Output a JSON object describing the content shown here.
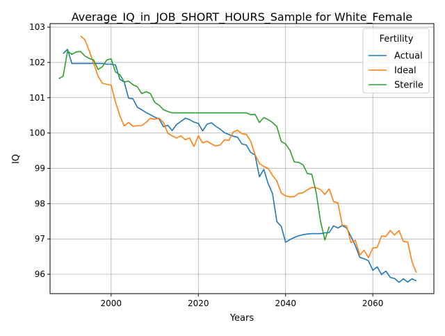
{
  "chart_data": {
    "type": "line",
    "title": "Average_IQ_in_JOB_SHORT_HOURS_Sample for White_Female",
    "xlabel": "Years",
    "ylabel": "IQ",
    "xlim": [
      1986,
      2074
    ],
    "ylim": [
      95.45,
      103.1
    ],
    "xticks": [
      2000,
      2020,
      2040,
      2060
    ],
    "yticks": [
      96,
      97,
      98,
      99,
      100,
      101,
      102,
      103
    ],
    "grid": true,
    "legend": {
      "title": "Fertility",
      "placement": "top-right"
    },
    "series": [
      {
        "name": "Actual",
        "color": "#1f77b4",
        "x": [
          1989,
          1990,
          1991,
          1992,
          1993,
          1994,
          1995,
          1996,
          1997,
          1998,
          1999,
          2000,
          2001,
          2002,
          2003,
          2004,
          2005,
          2006,
          2007,
          2008,
          2009,
          2010,
          2011,
          2012,
          2013,
          2014,
          2015,
          2016,
          2017,
          2018,
          2019,
          2020,
          2021,
          2022,
          2023,
          2024,
          2025,
          2026,
          2027,
          2028,
          2029,
          2030,
          2031,
          2032,
          2033,
          2034,
          2035,
          2036,
          2037,
          2038,
          2039,
          2040,
          2041,
          2042,
          2043,
          2044,
          2045,
          2046,
          2047,
          2048,
          2049,
          2050,
          2051,
          2052,
          2053,
          2054,
          2055,
          2056,
          2057,
          2058,
          2059,
          2060,
          2061,
          2062,
          2063,
          2064,
          2065,
          2066,
          2067,
          2068,
          2069,
          2070
        ],
        "y": [
          102.25,
          102.37,
          101.97,
          101.97,
          101.97,
          101.97,
          101.97,
          101.97,
          101.97,
          101.97,
          101.95,
          101.95,
          101.93,
          101.52,
          101.45,
          100.99,
          100.97,
          100.73,
          100.66,
          100.58,
          100.52,
          100.45,
          100.4,
          100.18,
          100.22,
          100.07,
          100.24,
          100.33,
          100.42,
          100.38,
          100.31,
          100.27,
          100.06,
          100.25,
          100.29,
          100.19,
          100.11,
          100.01,
          99.96,
          99.91,
          99.88,
          99.69,
          99.66,
          99.45,
          99.38,
          98.76,
          98.97,
          98.57,
          98.29,
          97.49,
          97.36,
          96.91,
          96.98,
          97.04,
          97.09,
          97.12,
          97.14,
          97.15,
          97.15,
          97.15,
          97.17,
          97.18,
          97.37,
          97.31,
          97.38,
          97.31,
          97.07,
          96.81,
          96.48,
          96.44,
          96.38,
          96.11,
          96.21,
          95.99,
          96.09,
          95.91,
          95.88,
          95.77,
          95.87,
          95.78,
          95.87,
          95.81
        ]
      },
      {
        "name": "Ideal",
        "color": "#ff7f0e",
        "x": [
          1993,
          1994,
          1995,
          1996,
          1997,
          1998,
          1999,
          2000,
          2001,
          2002,
          2003,
          2004,
          2005,
          2006,
          2007,
          2008,
          2009,
          2010,
          2011,
          2012,
          2013,
          2014,
          2015,
          2016,
          2017,
          2018,
          2019,
          2020,
          2021,
          2022,
          2023,
          2024,
          2025,
          2026,
          2027,
          2028,
          2029,
          2030,
          2031,
          2032,
          2033,
          2034,
          2035,
          2036,
          2037,
          2038,
          2039,
          2040,
          2041,
          2042,
          2043,
          2044,
          2045,
          2046,
          2047,
          2048,
          2049,
          2050,
          2051,
          2052,
          2053,
          2054,
          2055,
          2056,
          2057,
          2058,
          2059,
          2060,
          2061,
          2062,
          2063,
          2064,
          2065,
          2066,
          2067,
          2068,
          2069,
          2070
        ],
        "y": [
          102.75,
          102.64,
          102.32,
          101.98,
          101.61,
          101.41,
          101.38,
          101.36,
          100.88,
          100.49,
          100.2,
          100.3,
          100.19,
          100.21,
          100.21,
          100.3,
          100.42,
          100.39,
          100.42,
          100.3,
          99.99,
          99.92,
          99.86,
          99.92,
          99.81,
          99.86,
          99.62,
          99.92,
          99.72,
          99.77,
          99.69,
          99.63,
          99.66,
          99.81,
          99.79,
          100.03,
          100.08,
          99.98,
          99.96,
          99.77,
          99.39,
          99.14,
          99.05,
          99.0,
          98.8,
          98.64,
          98.3,
          98.22,
          98.19,
          98.2,
          98.29,
          98.31,
          98.39,
          98.46,
          98.45,
          98.4,
          98.26,
          98.42,
          98.06,
          98.02,
          97.39,
          97.37,
          96.9,
          96.96,
          96.55,
          96.68,
          96.47,
          96.74,
          96.76,
          97.08,
          97.07,
          97.24,
          97.11,
          97.24,
          96.93,
          96.91,
          96.35,
          96.04
        ]
      },
      {
        "name": "Sterile",
        "color": "#2ca02c",
        "x": [
          1988,
          1989,
          1990,
          1991,
          1992,
          1993,
          1994,
          1995,
          1996,
          1997,
          1998,
          1999,
          2000,
          2001,
          2002,
          2003,
          2004,
          2005,
          2006,
          2007,
          2008,
          2009,
          2010,
          2011,
          2012,
          2013,
          2014,
          2015,
          2016,
          2017,
          2018,
          2019,
          2020,
          2021,
          2022,
          2023,
          2024,
          2025,
          2026,
          2027,
          2028,
          2029,
          2030,
          2031,
          2032,
          2033,
          2034,
          2035,
          2036,
          2037,
          2038,
          2039,
          2040,
          2041,
          2042,
          2043,
          2044,
          2045,
          2046,
          2047,
          2048,
          2049,
          2050,
          2051,
          2052,
          2053,
          2054,
          2055,
          2056,
          2057,
          2058,
          2059
        ],
        "y": [
          101.54,
          101.61,
          102.32,
          102.23,
          102.3,
          102.31,
          102.18,
          102.11,
          102.07,
          101.8,
          101.88,
          102.07,
          102.1,
          101.73,
          101.65,
          101.45,
          101.47,
          101.37,
          101.31,
          101.12,
          101.17,
          101.12,
          100.87,
          100.79,
          100.66,
          100.61,
          100.57,
          100.57,
          100.57,
          100.57,
          100.57,
          100.57,
          100.57,
          100.57,
          100.57,
          100.57,
          100.57,
          100.57,
          100.57,
          100.57,
          100.57,
          100.57,
          100.57,
          100.57,
          100.52,
          100.53,
          100.3,
          100.44,
          100.38,
          100.3,
          100.18,
          99.76,
          99.69,
          99.51,
          99.18,
          99.17,
          99.1,
          98.85,
          98.83,
          98.33,
          97.51,
          96.97,
          97.35,
          null,
          null,
          null,
          null,
          null,
          null,
          null,
          null,
          null
        ]
      }
    ]
  }
}
